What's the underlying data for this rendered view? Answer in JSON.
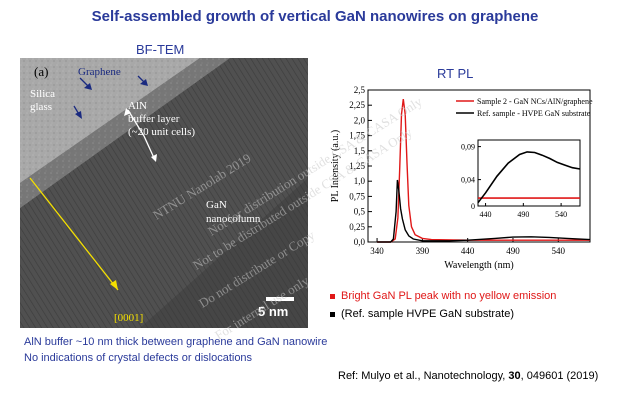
{
  "slide": {
    "title": "Self-assembled growth of vertical GaN nanowires on graphene",
    "tem_heading": "BF-TEM",
    "pl_heading": "RT PL"
  },
  "tem": {
    "panel_label": "(a)",
    "graphene_label": "Graphene",
    "silica_label_line1": "Silica",
    "silica_label_line2": "glass",
    "aln_label_line1": "AlN",
    "aln_label_line2": "buffer layer",
    "aln_label_line3": "(~20 unit cells)",
    "gan_label_line1": "GaN",
    "gan_label_line2": "nanocolumn",
    "direction_label": "[0001]",
    "scale_bar_label": "5 nm"
  },
  "captions": {
    "line1": "AlN buffer ~10 nm thick between graphene and GaN nanowire",
    "line2": "No indications of crystal defects or dislocations"
  },
  "legend_bottom": {
    "red_item": "Bright GaN PL peak with no yellow emission",
    "black_item": "(Ref. sample HVPE GaN substrate)"
  },
  "reference": {
    "prefix": "Ref: Mulyo et al., Nanotechnology, ",
    "volume": "30",
    "suffix": ", 049601 (2019)"
  },
  "watermark": {
    "line1": "NTNU Nanolab 2019",
    "line2": "Not for distribution outside CSA & CASA Only",
    "line3": "Not to be distributed outside CSA & CASA Only",
    "line4": "Do not distribute or Copy",
    "line5": "For internal use only"
  },
  "colors": {
    "title_blue": "#2a3a9a",
    "red_series": "#e01818",
    "black_series": "#000000"
  },
  "chart_data": {
    "type": "line",
    "xlabel": "Wavelength (nm)",
    "ylabel": "PL Intensity (a.u.)",
    "xlim": [
      330,
      575
    ],
    "ylim": [
      0,
      2.5
    ],
    "x_ticks": [
      340,
      390,
      440,
      490,
      540
    ],
    "y_ticks": [
      0.0,
      0.25,
      0.5,
      0.75,
      1.0,
      1.25,
      1.5,
      1.75,
      2.0,
      2.25,
      2.5
    ],
    "y_tick_labels": [
      "0,0",
      "0,25",
      "0,5",
      "0,75",
      "1,0",
      "1,25",
      "1,5",
      "1,75",
      "2,0",
      "2,25",
      "2,5"
    ],
    "legend_position": "top-right",
    "series": [
      {
        "name": "Sample 2 - GaN NCs/AlN/graphene",
        "color": "#e01818",
        "x": [
          340,
          355,
          360,
          363,
          365,
          367,
          369,
          371,
          373,
          375,
          378,
          382,
          390,
          400,
          440,
          490,
          540,
          575
        ],
        "y": [
          0.0,
          0.0,
          0.05,
          0.4,
          1.2,
          2.1,
          2.35,
          2.1,
          1.3,
          0.6,
          0.25,
          0.12,
          0.06,
          0.04,
          0.03,
          0.03,
          0.03,
          0.03
        ]
      },
      {
        "name": "Ref. sample - HVPE GaN substrate",
        "color": "#000000",
        "x": [
          340,
          355,
          358,
          361,
          362.5,
          364,
          366,
          368,
          371,
          375,
          380,
          390,
          420,
          440,
          470,
          490,
          510,
          530,
          550,
          575
        ],
        "y": [
          0.0,
          0.0,
          0.05,
          0.5,
          1.02,
          0.85,
          0.55,
          0.38,
          0.2,
          0.1,
          0.05,
          0.02,
          0.02,
          0.03,
          0.06,
          0.08,
          0.085,
          0.075,
          0.06,
          0.04
        ]
      }
    ],
    "inset": {
      "xlim": [
        430,
        565
      ],
      "ylim": [
        0,
        0.1
      ],
      "x_ticks": [
        440,
        490,
        540
      ],
      "y_ticks": [
        0.0,
        0.04,
        0.09
      ],
      "y_tick_labels": [
        "0",
        "0,04",
        "0,09"
      ],
      "series": [
        {
          "color": "#e01818",
          "x": [
            430,
            565
          ],
          "y": [
            0.012,
            0.012
          ]
        },
        {
          "color": "#000000",
          "x": [
            430,
            440,
            455,
            470,
            485,
            495,
            505,
            515,
            525,
            535,
            545,
            555,
            565
          ],
          "y": [
            0.005,
            0.02,
            0.045,
            0.065,
            0.078,
            0.082,
            0.081,
            0.077,
            0.072,
            0.066,
            0.062,
            0.058,
            0.056
          ]
        }
      ]
    }
  }
}
